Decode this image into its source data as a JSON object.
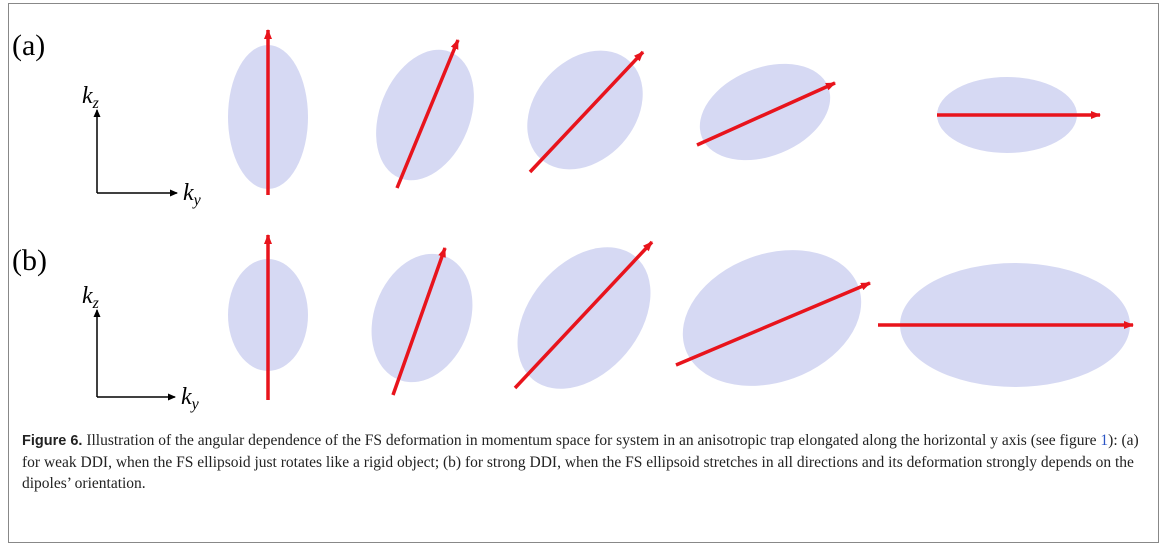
{
  "panels": [
    {
      "label": "(a)",
      "axis_z": {
        "base": "k",
        "sub": "z"
      },
      "axis_y": {
        "base": "k",
        "sub": "y"
      }
    },
    {
      "label": "(b)",
      "axis_z": {
        "base": "k",
        "sub": "z"
      },
      "axis_y": {
        "base": "k",
        "sub": "y"
      }
    }
  ],
  "caption": {
    "label": "Figure 6.",
    "text_before": " Illustration of the angular dependence of the FS deformation in momentum space for system in an anisotropic trap elongated along the horizontal y axis (see figure ",
    "ref": "1",
    "text_after": "): (a) for weak DDI, when the FS ellipsoid just rotates like a rigid object; (b) for strong DDI, when the FS ellipsoid stretches in all directions and its deformation strongly depends on the dipoles’ orientation."
  }
}
